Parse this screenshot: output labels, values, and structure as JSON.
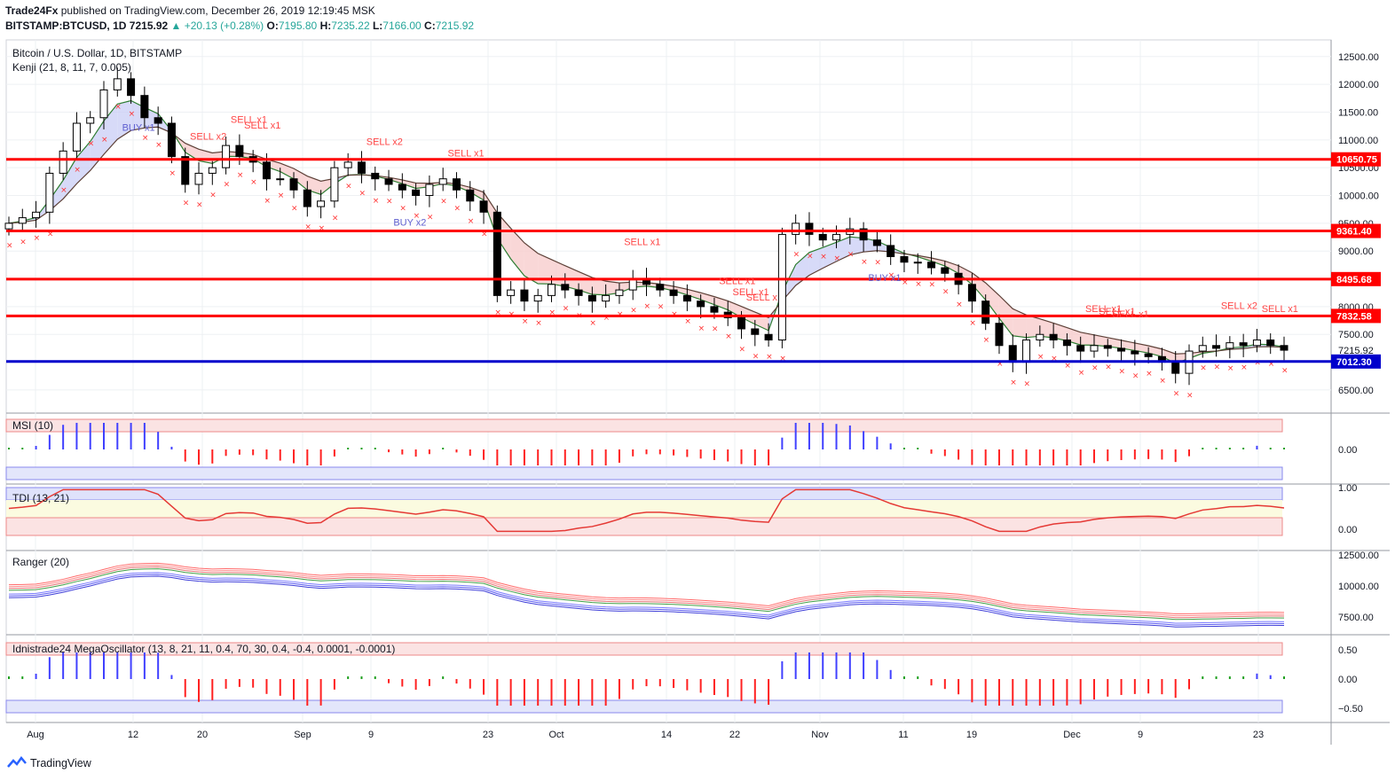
{
  "header": {
    "publisher": "Trade24Fx",
    "published_text": "published on TradingView.com, December 26, 2019 12:19:45 MSK",
    "symbol": "BITSTAMP:BTCUSD, 1D",
    "last": "7215.92",
    "change": "▲ +20.13 (+0.28%)",
    "o_label": "O:",
    "o": "7195.80",
    "h_label": "H:",
    "h": "7235.22",
    "l_label": "L:",
    "l": "7166.00",
    "c_label": "C:",
    "c": "7215.92"
  },
  "footer": {
    "brand": "TradingView"
  },
  "chart_data": [
    {
      "type": "candlestick",
      "title": "Bitcoin / U.S. Dollar, 1D, BITSTAMP",
      "indicator_label": "Kenji (21, 8, 11, 7, 0.005)",
      "y_ticks": [
        "12500.00",
        "12000.00",
        "11500.00",
        "11000.00",
        "10500.00",
        "10000.00",
        "9500.00",
        "9000.00",
        "8500.00",
        "8000.00",
        "7500.00",
        "7000.00",
        "6500.00"
      ],
      "ylim": [
        6100,
        12800
      ],
      "horizontal_levels": [
        {
          "value": 10650.75,
          "label": "10650.75",
          "color": "#ff0000"
        },
        {
          "value": 9361.4,
          "label": "9361.40",
          "color": "#ff0000"
        },
        {
          "value": 8495.68,
          "label": "8495.68",
          "color": "#ff0000"
        },
        {
          "value": 7832.58,
          "label": "7832.58",
          "color": "#ff0000"
        },
        {
          "value": 7012.3,
          "label": "7012.30",
          "color": "#0000cc"
        }
      ],
      "last_price": {
        "value": 7215.92,
        "label": "7215.92"
      },
      "x_ticks": [
        "Aug",
        "12",
        "20",
        "Sep",
        "9",
        "23",
        "Oct",
        "14",
        "22",
        "Nov",
        "11",
        "19",
        "Dec",
        "9",
        "23"
      ],
      "close_path": [
        9500,
        9600,
        9700,
        10400,
        10800,
        11300,
        11400,
        11900,
        12100,
        11800,
        11400,
        11300,
        10700,
        10200,
        10400,
        10500,
        10900,
        10700,
        10600,
        10300,
        10300,
        10100,
        9800,
        9900,
        10500,
        10600,
        10400,
        10300,
        10200,
        10100,
        10000,
        10200,
        10300,
        10100,
        9900,
        9700,
        8200,
        8300,
        8100,
        8200,
        8400,
        8300,
        8200,
        8100,
        8200,
        8300,
        8500,
        8400,
        8300,
        8200,
        8100,
        8000,
        7900,
        7800,
        7600,
        7500,
        7400,
        9300,
        9500,
        9300,
        9200,
        9300,
        9400,
        9200,
        9100,
        8900,
        8800,
        8800,
        8700,
        8600,
        8400,
        8100,
        7700,
        7300,
        7000,
        7400,
        7500,
        7400,
        7300,
        7200,
        7300,
        7250,
        7200,
        7150,
        7100,
        7000,
        6800,
        7200,
        7300,
        7250,
        7350,
        7300,
        7400,
        7300,
        7216
      ],
      "signals": [
        {
          "text": "BUY x1",
          "color": "#6060d0"
        },
        {
          "text": "SELL x2",
          "color": "#ff4444"
        },
        {
          "text": "SELL x1",
          "color": "#ff4444"
        },
        {
          "text": "SELL x1",
          "color": "#ff4444"
        },
        {
          "text": "SELL x2",
          "color": "#ff4444"
        },
        {
          "text": "SELL x1",
          "color": "#ff4444"
        },
        {
          "text": "BUY x2",
          "color": "#6060d0"
        },
        {
          "text": "SELL x1",
          "color": "#ff4444"
        },
        {
          "text": "SELL x1",
          "color": "#ff4444"
        },
        {
          "text": "SELL x1",
          "color": "#ff4444"
        },
        {
          "text": "SELL x",
          "color": "#ff4444"
        },
        {
          "text": "BUY x1",
          "color": "#6060d0"
        },
        {
          "text": "SELL x1",
          "color": "#ff4444"
        },
        {
          "text": "SELL x1",
          "color": "#ff4444"
        },
        {
          "text": "SELL x1",
          "color": "#ff4444"
        },
        {
          "text": "SELL x2",
          "color": "#ff4444"
        },
        {
          "text": "SELL x1",
          "color": "#ff4444"
        }
      ]
    },
    {
      "type": "bar",
      "title": "MSI (10)",
      "y_ticks": [
        "0.00"
      ],
      "colors": {
        "positive": "#4040ff",
        "negative": "#ff2020",
        "neutral": "#20a020"
      }
    },
    {
      "type": "line",
      "title": "TDI (13, 21)",
      "y_ticks": [
        "1.00",
        "0.00"
      ]
    },
    {
      "type": "line",
      "title": "Ranger (20)",
      "y_ticks": [
        "12500.00",
        "10000.00",
        "7500.00"
      ]
    },
    {
      "type": "bar",
      "title": "Idnistrade24 MegaOscillator (13, 8, 21, 11, 0.4, 70, 30, 0.4, -0.4, 0.0001, -0.0001)",
      "y_ticks": [
        "0.50",
        "0.00",
        "−0.50"
      ]
    }
  ]
}
